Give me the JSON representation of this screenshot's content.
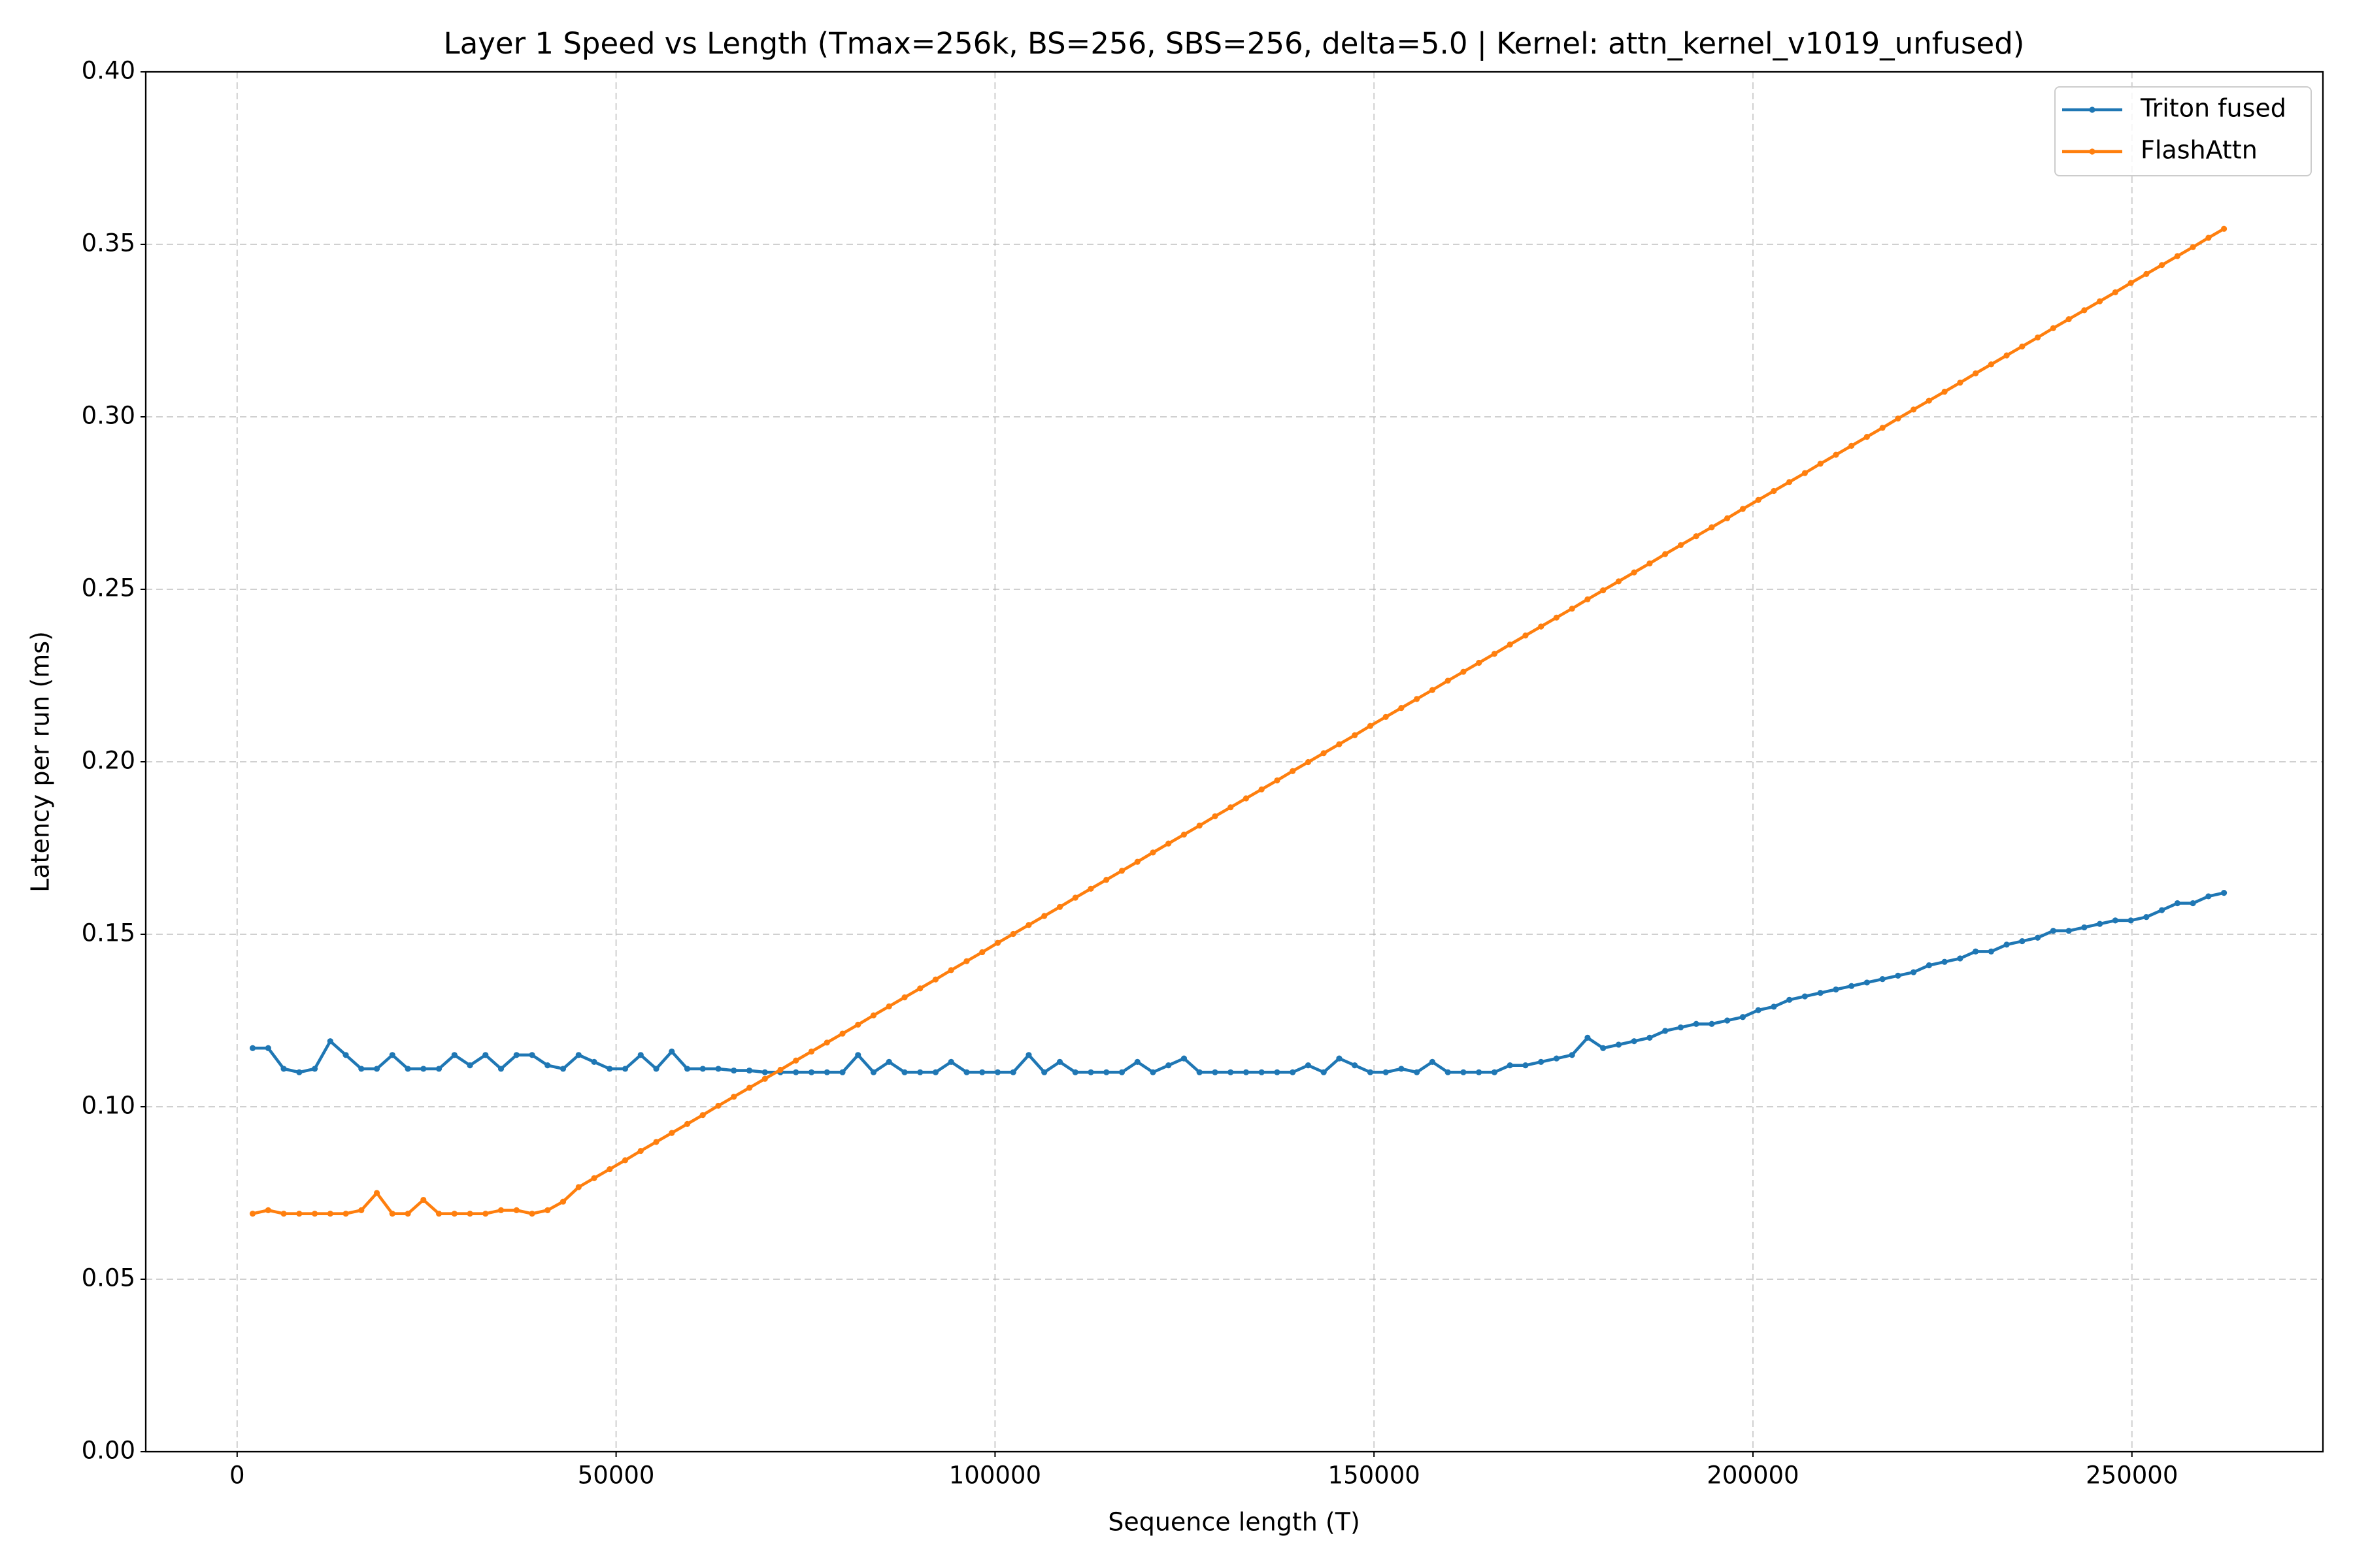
{
  "chart_data": {
    "type": "line",
    "title": "Layer 1 Speed vs Length (Tmax=256k, BS=256, SBS=256, delta=5.0 | Kernel: attn_kernel_v1019_unfused)",
    "xlabel": "Sequence length (T)",
    "ylabel": "Latency per run (ms)",
    "xlim": [
      -12058,
      275202
    ],
    "ylim": [
      0,
      0.4
    ],
    "xticks": [
      0,
      50000,
      100000,
      150000,
      200000,
      250000
    ],
    "yticks": [
      {
        "value": 0,
        "label": "0.00"
      },
      {
        "value": 0.05,
        "label": "0.05"
      },
      {
        "value": 0.1,
        "label": "0.10"
      },
      {
        "value": 0.15,
        "label": "0.15"
      },
      {
        "value": 0.2,
        "label": "0.20"
      },
      {
        "value": 0.25,
        "label": "0.25"
      },
      {
        "value": 0.3,
        "label": "0.30"
      },
      {
        "value": 0.35,
        "label": "0.35"
      },
      {
        "value": 0.4,
        "label": "0.40"
      }
    ],
    "grid": true,
    "legend": "upper right",
    "x": [
      2048,
      4096,
      6144,
      8192,
      10240,
      12288,
      14336,
      16384,
      18432,
      20480,
      22528,
      24576,
      26624,
      28672,
      30720,
      32768,
      34816,
      36864,
      38912,
      40960,
      43008,
      45056,
      47104,
      49152,
      51200,
      53248,
      55296,
      57344,
      59392,
      61440,
      63488,
      65536,
      67584,
      69632,
      71680,
      73728,
      75776,
      77824,
      79872,
      81920,
      83968,
      86016,
      88064,
      90112,
      92160,
      94208,
      96256,
      98304,
      100352,
      102400,
      104448,
      106496,
      108544,
      110592,
      112640,
      114688,
      116736,
      118784,
      120832,
      122880,
      124928,
      126976,
      129024,
      131072,
      133120,
      135168,
      137216,
      139264,
      141312,
      143360,
      145408,
      147456,
      149504,
      151552,
      153600,
      155648,
      157696,
      159744,
      161792,
      163840,
      165888,
      167936,
      169984,
      172032,
      174080,
      176128,
      178176,
      180224,
      182272,
      184320,
      186368,
      188416,
      190464,
      192512,
      194560,
      196608,
      198656,
      200704,
      202752,
      204800,
      206848,
      208896,
      210944,
      212992,
      215040,
      217088,
      219136,
      221184,
      223232,
      225280,
      227328,
      229376,
      231424,
      233472,
      235520,
      237568,
      239616,
      241664,
      243712,
      245760,
      247808,
      249856,
      251904,
      253952,
      256000,
      258048,
      260096,
      262144
    ],
    "series": [
      {
        "name": "Triton fused",
        "color": "#1f77b4",
        "values": [
          0.117,
          0.117,
          0.111,
          0.11,
          0.111,
          0.119,
          0.115,
          0.111,
          0.111,
          0.115,
          0.111,
          0.111,
          0.111,
          0.115,
          0.112,
          0.115,
          0.111,
          0.115,
          0.115,
          0.112,
          0.111,
          0.115,
          0.113,
          0.111,
          0.111,
          0.115,
          0.111,
          0.116,
          0.111,
          0.111,
          0.111,
          0.1105,
          0.1105,
          0.11,
          0.11,
          0.11,
          0.11,
          0.11,
          0.11,
          0.115,
          0.11,
          0.113,
          0.11,
          0.11,
          0.11,
          0.113,
          0.11,
          0.11,
          0.11,
          0.11,
          0.115,
          0.11,
          0.113,
          0.11,
          0.11,
          0.11,
          0.11,
          0.113,
          0.11,
          0.112,
          0.114,
          0.11,
          0.11,
          0.11,
          0.11,
          0.11,
          0.11,
          0.11,
          0.112,
          0.11,
          0.114,
          0.112,
          0.11,
          0.11,
          0.111,
          0.11,
          0.113,
          0.11,
          0.11,
          0.11,
          0.11,
          0.112,
          0.112,
          0.113,
          0.114,
          0.115,
          0.12,
          0.117,
          0.118,
          0.119,
          0.12,
          0.122,
          0.123,
          0.124,
          0.124,
          0.125,
          0.126,
          0.128,
          0.129,
          0.131,
          0.132,
          0.133,
          0.134,
          0.135,
          0.136,
          0.137,
          0.138,
          0.139,
          0.141,
          0.142,
          0.143,
          0.145,
          0.145,
          0.147,
          0.148,
          0.149,
          0.151,
          0.151,
          0.152,
          0.153,
          0.154,
          0.154,
          0.155,
          0.157,
          0.159,
          0.159,
          0.161,
          0.162
        ]
      },
      {
        "name": "FlashAttn",
        "color": "#ff7f0e",
        "values": [
          0.069,
          0.07,
          0.069,
          0.069,
          0.069,
          0.069,
          0.069,
          0.07,
          0.075,
          0.069,
          0.069,
          0.073,
          0.069,
          0.069,
          0.069,
          0.069,
          0.07,
          0.07,
          0.069,
          0.07,
          0.0725,
          0.0767,
          0.0793,
          0.0819,
          0.0845,
          0.0872,
          0.0898,
          0.0924,
          0.095,
          0.0976,
          0.1003,
          0.1029,
          0.1055,
          0.1081,
          0.1107,
          0.1134,
          0.116,
          0.1186,
          0.1212,
          0.1238,
          0.1265,
          0.1291,
          0.1317,
          0.1343,
          0.1369,
          0.1396,
          0.1422,
          0.1448,
          0.1475,
          0.1501,
          0.1527,
          0.1553,
          0.1579,
          0.1606,
          0.1632,
          0.1658,
          0.1684,
          0.171,
          0.1737,
          0.1763,
          0.1789,
          0.1815,
          0.1842,
          0.1868,
          0.1894,
          0.192,
          0.1946,
          0.1973,
          0.1999,
          0.2025,
          0.2051,
          0.2077,
          0.2104,
          0.213,
          0.2156,
          0.2182,
          0.2208,
          0.2235,
          0.2261,
          0.2287,
          0.2313,
          0.234,
          0.2366,
          0.2392,
          0.2418,
          0.2444,
          0.2471,
          0.2497,
          0.2523,
          0.2549,
          0.2575,
          0.2602,
          0.2628,
          0.2654,
          0.268,
          0.2706,
          0.2733,
          0.2759,
          0.2785,
          0.2811,
          0.2837,
          0.2864,
          0.289,
          0.2916,
          0.2942,
          0.2968,
          0.2995,
          0.3021,
          0.3047,
          0.3073,
          0.3099,
          0.3126,
          0.3152,
          0.3178,
          0.3204,
          0.323,
          0.3257,
          0.3283,
          0.3309,
          0.3335,
          0.3361,
          0.3388,
          0.3414,
          0.344,
          0.3466,
          0.3492,
          0.3519,
          0.3545
        ]
      }
    ]
  }
}
